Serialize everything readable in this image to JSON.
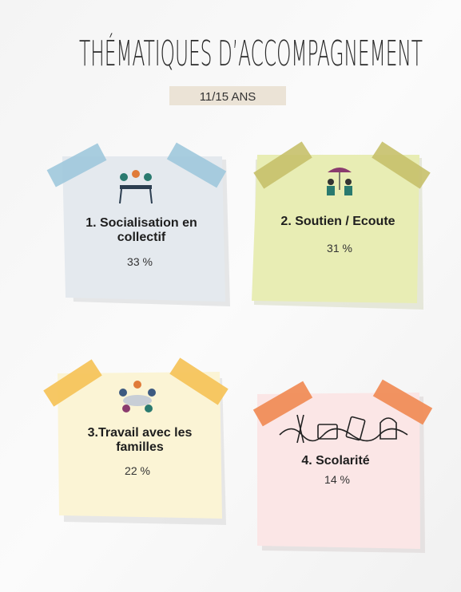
{
  "header": {
    "title": "THÉMATIQUES D’ACCOMPAGNEMENT",
    "subtitle": "11/15 ANS"
  },
  "cards": [
    {
      "label_lines": [
        "1. Socialisation en",
        "collectif"
      ],
      "value": "33 %"
    },
    {
      "label_lines": [
        "2. Soutien / Ecoute"
      ],
      "value": "31 %"
    },
    {
      "label_lines": [
        "3.Travail avec les",
        "familles"
      ],
      "value": "22 %"
    },
    {
      "label_lines": [
        "4. Scolarité"
      ],
      "value": "14 %"
    }
  ]
}
